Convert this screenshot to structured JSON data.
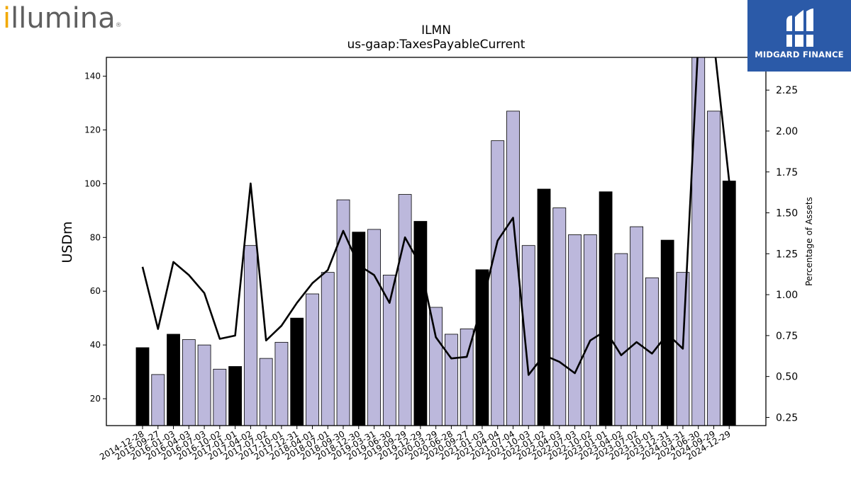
{
  "header": {
    "company_logo_text": "illumina",
    "watermark_text": "MIDGARD FINANCE"
  },
  "colors": {
    "bar_default": "#bcb8dc",
    "bar_highlight": "#000000",
    "line": "#000000",
    "watermark_bg": "#2b5aa8",
    "logo_accent": "#f2a900"
  },
  "chart_data": {
    "type": "bar",
    "title": "ILMN",
    "subtitle": "us-gaap:TaxesPayableCurrent",
    "ylabel": "USDm",
    "y2label": "Percentage of Assets",
    "ylim": [
      10,
      147
    ],
    "y2lim": [
      0.2,
      2.45
    ],
    "yticks": [
      20,
      40,
      60,
      80,
      100,
      120,
      140
    ],
    "y2ticks": [
      0.25,
      0.5,
      0.75,
      1.0,
      1.25,
      1.5,
      1.75,
      2.0,
      2.25
    ],
    "y2tick_labels": [
      "0.25",
      "0.50",
      "0.75",
      "1.00",
      "1.25",
      "1.50",
      "1.75",
      "2.00",
      "2.25"
    ],
    "grid": false,
    "categories": [
      "2014-12-28",
      "2015-09-27",
      "2016-01-03",
      "2016-04-03",
      "2016-07-03",
      "2016-10-02",
      "2017-01-01",
      "2017-04-02",
      "2017-07-02",
      "2017-10-01",
      "2017-12-31",
      "2018-04-01",
      "2018-07-01",
      "2018-09-30",
      "2018-12-30",
      "2019-03-31",
      "2019-06-30",
      "2019-09-29",
      "2019-12-29",
      "2020-03-29",
      "2020-06-28",
      "2020-09-27",
      "2021-01-03",
      "2021-04-04",
      "2021-07-04",
      "2021-10-03",
      "2022-01-02",
      "2022-04-03",
      "2022-07-03",
      "2022-10-02",
      "2023-01-01",
      "2023-04-02",
      "2023-07-02",
      "2023-10-01",
      "2023-12-31",
      "2024-03-31",
      "2024-06-30",
      "2024-09-29",
      "2024-12-29"
    ],
    "series": [
      {
        "kind": "bar",
        "values": [
          39,
          29,
          44,
          42,
          40,
          31,
          32,
          77,
          35,
          41,
          50,
          59,
          67,
          94,
          82,
          83,
          66,
          96,
          86,
          54,
          44,
          46,
          68,
          116,
          127,
          77,
          98,
          91,
          81,
          81,
          97,
          74,
          84,
          65,
          79,
          67,
          150,
          127,
          101
        ],
        "highlight": [
          true,
          false,
          true,
          false,
          false,
          false,
          true,
          false,
          false,
          false,
          true,
          false,
          false,
          false,
          true,
          false,
          false,
          false,
          true,
          false,
          false,
          false,
          true,
          false,
          false,
          false,
          true,
          false,
          false,
          false,
          true,
          false,
          false,
          false,
          true,
          false,
          false,
          false,
          true
        ]
      },
      {
        "kind": "line",
        "axis": "right",
        "values": [
          1.17,
          0.79,
          1.2,
          1.12,
          1.01,
          0.73,
          0.75,
          1.68,
          0.72,
          0.81,
          0.95,
          1.07,
          1.15,
          1.39,
          1.18,
          1.12,
          0.95,
          1.35,
          1.18,
          0.74,
          0.61,
          0.62,
          0.94,
          1.33,
          1.47,
          0.51,
          0.63,
          0.59,
          0.52,
          0.72,
          0.78,
          0.63,
          0.71,
          0.64,
          0.76,
          0.67,
          2.55,
          2.55,
          1.69
        ]
      }
    ]
  }
}
